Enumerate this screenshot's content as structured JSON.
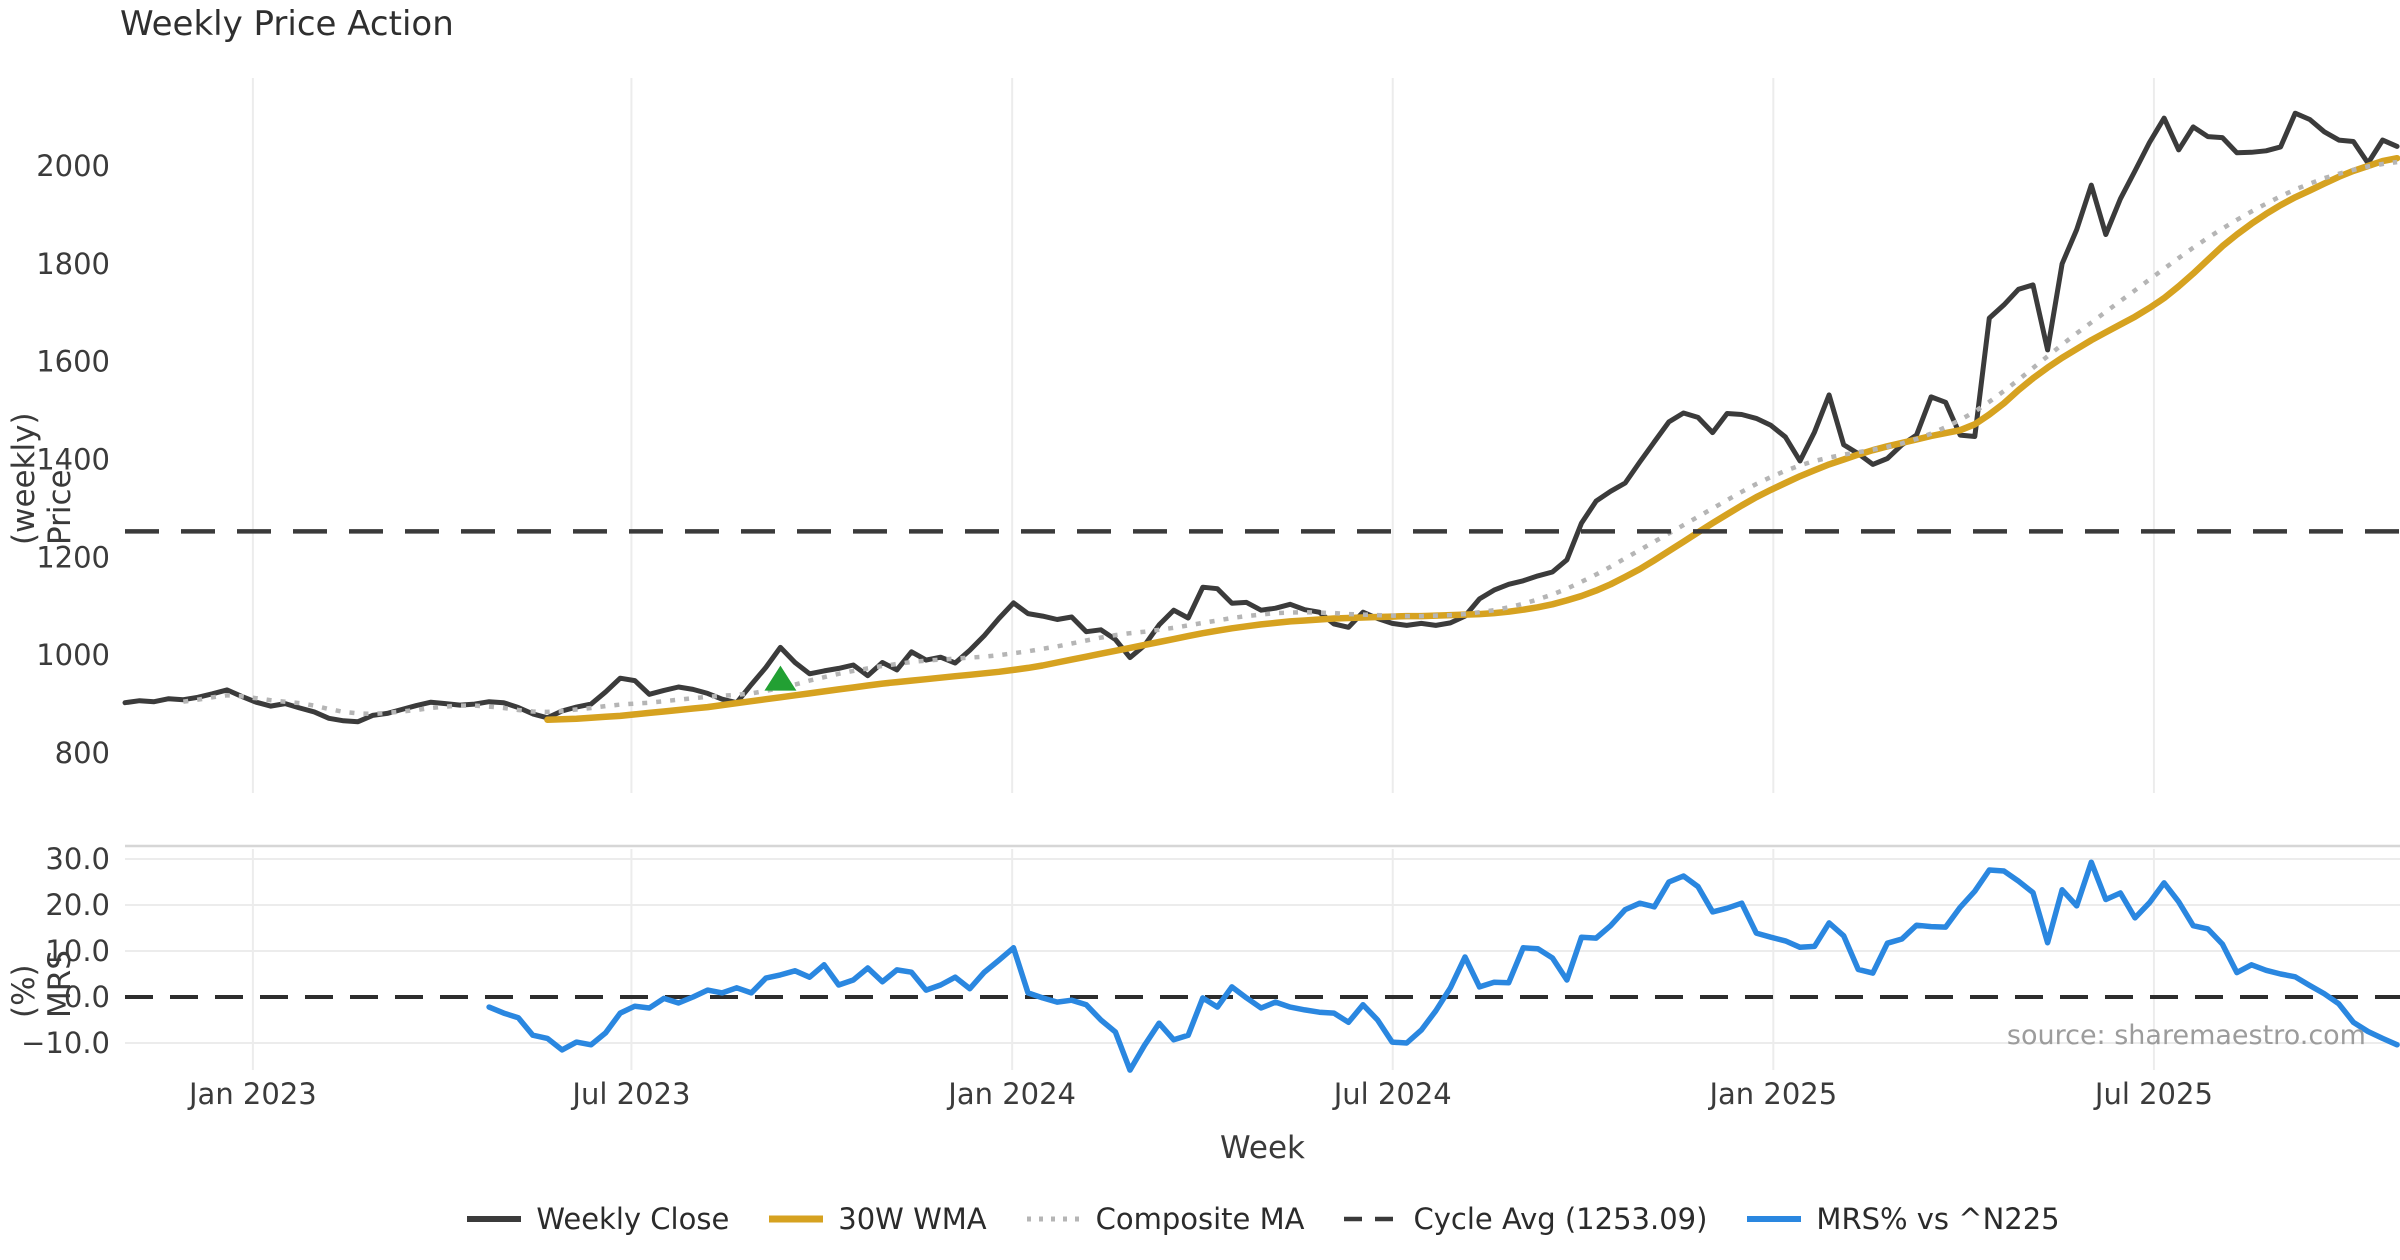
{
  "figure": {
    "title": "Weekly Price Action",
    "xlabel": "Week",
    "source_text": "source: sharemaestro.com"
  },
  "colors": {
    "background": "#ffffff",
    "grid": "#ececec",
    "panel_border": "#d6d6d6",
    "tick_text": "#3b3b3b",
    "weekly_close": "#3b3b3b",
    "wma": "#d6a220",
    "composite": "#b5b5b5",
    "cycle_avg": "#3a3a3a",
    "mrs": "#2a87e0",
    "signal_green": "#22a033"
  },
  "legend": {
    "items": [
      {
        "label": "Weekly Close",
        "color": "#3b3b3b",
        "dash": "",
        "width": 6
      },
      {
        "label": "30W WMA",
        "color": "#d6a220",
        "dash": "",
        "width": 7
      },
      {
        "label": "Composite MA",
        "color": "#b5b5b5",
        "dash": "4 8",
        "width": 5
      },
      {
        "label": "Cycle Avg (1253.09)",
        "color": "#3a3a3a",
        "dash": "18 13",
        "width": 4.5
      },
      {
        "label": "MRS% vs ^N225",
        "color": "#2a87e0",
        "dash": "",
        "width": 6
      }
    ]
  },
  "chart_data": {
    "type": "line",
    "title": "Weekly Price Action",
    "x_axis": {
      "label": "Week",
      "tick_labels": [
        "Jan 2023",
        "Jul 2023",
        "Jan 2024",
        "Jul 2024",
        "Jan 2025",
        "Jul 2025"
      ],
      "tick_weeks": [
        8.78,
        34.77,
        60.91,
        87.04,
        113.17,
        139.3
      ],
      "grid": true
    },
    "panels": [
      {
        "name": "price",
        "ylabel": "Price (weekly)",
        "ylim": [
          770,
          2180
        ],
        "yticks": [
          800,
          1000,
          1200,
          1400,
          1600,
          1800,
          2000
        ],
        "ytick_labels": [
          "800",
          "1000",
          "1200",
          "1400",
          "1600",
          "1800",
          "2000"
        ]
      },
      {
        "name": "mrs",
        "ylabel": "MRS (%)",
        "ylim": [
          -17,
          32
        ],
        "yticks": [
          30,
          20,
          10,
          0,
          -10
        ],
        "ytick_labels": [
          "30.0",
          "20.0",
          "10.0",
          "0.0",
          "−10.0"
        ]
      }
    ],
    "series": [
      {
        "name": "Weekly Close",
        "panel": "price",
        "kind": "line",
        "color": "#3b3b3b",
        "width": 5,
        "dash": "",
        "start_week": 0,
        "values": [
          903,
          907,
          905,
          911,
          909,
          914,
          921,
          929,
          916,
          904,
          896,
          901,
          892,
          884,
          871,
          866,
          864,
          877,
          881,
          889,
          897,
          904,
          901,
          898,
          900,
          905,
          903,
          893,
          880,
          872,
          886,
          894,
          900,
          925,
          953,
          948,
          920,
          928,
          935,
          930,
          922,
          910,
          903,
          940,
          975,
          1016,
          985,
          962,
          968,
          973,
          980,
          958,
          985,
          970,
          1007,
          990,
          996,
          984,
          1010,
          1040,
          1075,
          1107,
          1085,
          1080,
          1073,
          1078,
          1048,
          1052,
          1032,
          995,
          1020,
          1062,
          1092,
          1076,
          1139,
          1136,
          1106,
          1108,
          1092,
          1096,
          1104,
          1093,
          1088,
          1064,
          1057,
          1088,
          1075,
          1065,
          1061,
          1065,
          1061,
          1066,
          1080,
          1115,
          1133,
          1145,
          1152,
          1162,
          1170,
          1195,
          1270,
          1315,
          1335,
          1352,
          1395,
          1436,
          1477,
          1495,
          1486,
          1455,
          1494,
          1492,
          1484,
          1470,
          1446,
          1397,
          1456,
          1532,
          1430,
          1412,
          1390,
          1402,
          1430,
          1450,
          1528,
          1517,
          1450,
          1447,
          1689,
          1716,
          1748,
          1757,
          1624,
          1800,
          1870,
          1961,
          1860,
          1933,
          1990,
          2048,
          2098,
          2033,
          2080,
          2060,
          2058,
          2027,
          2028,
          2031,
          2039,
          2108,
          2095,
          2070,
          2053,
          2050,
          2006,
          2053,
          2040
        ]
      },
      {
        "name": "30W WMA",
        "panel": "price",
        "kind": "line",
        "color": "#d6a220",
        "width": 6.5,
        "dash": "",
        "start_week": 29,
        "values": [
          868,
          869,
          870,
          872,
          874,
          876,
          879,
          882,
          885,
          888,
          891,
          894,
          898,
          902,
          906,
          910,
          914,
          918,
          922,
          926,
          930,
          934,
          938,
          942,
          945,
          948,
          951,
          954,
          957,
          960,
          963,
          966,
          970,
          974,
          979,
          985,
          991,
          997,
          1003,
          1009,
          1015,
          1021,
          1027,
          1033,
          1039,
          1045,
          1050,
          1055,
          1059,
          1063,
          1066,
          1069,
          1071,
          1073,
          1075,
          1076,
          1077,
          1078,
          1079,
          1080,
          1080,
          1081,
          1082,
          1083,
          1084,
          1086,
          1089,
          1093,
          1098,
          1104,
          1112,
          1121,
          1132,
          1145,
          1160,
          1176,
          1194,
          1213,
          1232,
          1251,
          1270,
          1288,
          1306,
          1323,
          1338,
          1352,
          1366,
          1378,
          1390,
          1400,
          1410,
          1419,
          1427,
          1434,
          1441,
          1448,
          1454,
          1460,
          1472,
          1492,
          1515,
          1542,
          1566,
          1588,
          1608,
          1626,
          1644,
          1660,
          1676,
          1692,
          1710,
          1730,
          1754,
          1780,
          1808,
          1836,
          1860,
          1882,
          1902,
          1920,
          1936,
          1950,
          1964,
          1978,
          1990,
          2000,
          2010,
          2016
        ]
      },
      {
        "name": "Composite MA",
        "panel": "price",
        "kind": "line",
        "color": "#b5b5b5",
        "width": 4.5,
        "dash": "5 9",
        "start_week": 4,
        "values": [
          905,
          909,
          914,
          918,
          916,
          912,
          908,
          905,
          902,
          897,
          890,
          884,
          881,
          880,
          882,
          885,
          888,
          892,
          895,
          897,
          897,
          895,
          892,
          888,
          885,
          884,
          886,
          889,
          892,
          896,
          899,
          901,
          903,
          906,
          909,
          912,
          915,
          917,
          919,
          922,
          927,
          933,
          940,
          948,
          955,
          962,
          968,
          973,
          978,
          982,
          986,
          989,
          991,
          993,
          995,
          997,
          1000,
          1004,
          1008,
          1013,
          1018,
          1024,
          1030,
          1036,
          1041,
          1045,
          1048,
          1052,
          1056,
          1061,
          1066,
          1071,
          1076,
          1080,
          1083,
          1086,
          1087,
          1088,
          1087,
          1086,
          1084,
          1083,
          1082,
          1081,
          1080,
          1080,
          1081,
          1082,
          1084,
          1088,
          1092,
          1098,
          1105,
          1114,
          1124,
          1136,
          1150,
          1165,
          1181,
          1198,
          1215,
          1232,
          1249,
          1266,
          1283,
          1300,
          1317,
          1334,
          1350,
          1364,
          1377,
          1388,
          1397,
          1404,
          1410,
          1415,
          1420,
          1426,
          1433,
          1442,
          1453,
          1466,
          1481,
          1498,
          1518,
          1540,
          1563,
          1587,
          1611,
          1635,
          1658,
          1680,
          1702,
          1724,
          1746,
          1768,
          1790,
          1812,
          1833,
          1853,
          1872,
          1890,
          1907,
          1923,
          1938,
          1952,
          1964,
          1975,
          1984,
          1992,
          1999,
          2004,
          2008
        ]
      },
      {
        "name": "Cycle Avg",
        "panel": "price",
        "kind": "hline",
        "color": "#3a3a3a",
        "width": 4.5,
        "dash": "34 22",
        "value": 1253.09
      },
      {
        "name": "Zero Line",
        "panel": "mrs",
        "kind": "hline",
        "color": "#2d2d2d",
        "width": 4,
        "dash": "28 17",
        "value": 0
      },
      {
        "name": "MRS% vs ^N225",
        "panel": "mrs",
        "kind": "line",
        "color": "#2a87e0",
        "width": 5.5,
        "dash": "",
        "start_week": 25,
        "values": [
          -2.2,
          -3.5,
          -4.5,
          -8.3,
          -9.0,
          -11.5,
          -9.8,
          -10.4,
          -7.8,
          -3.5,
          -2.0,
          -2.4,
          -0.3,
          -1.3,
          0.0,
          1.5,
          0.9,
          2.0,
          0.9,
          4.1,
          4.8,
          5.7,
          4.3,
          7.0,
          2.6,
          3.7,
          6.3,
          3.3,
          5.9,
          5.4,
          1.5,
          2.6,
          4.3,
          1.8,
          5.4,
          8.0,
          10.7,
          0.9,
          -0.2,
          -1.1,
          -0.7,
          -1.7,
          -5.0,
          -7.6,
          -15.9,
          -10.5,
          -5.7,
          -9.3,
          -8.3,
          -0.2,
          -2.2,
          2.2,
          -0.2,
          -2.4,
          -1.1,
          -2.2,
          -2.8,
          -3.3,
          -3.5,
          -5.5,
          -1.7,
          -5.0,
          -9.8,
          -10.0,
          -7.2,
          -3.0,
          2.0,
          8.7,
          2.2,
          3.2,
          3.1,
          10.7,
          10.5,
          8.5,
          3.7,
          13.0,
          12.8,
          15.5,
          19.0,
          20.4,
          19.6,
          25.0,
          26.3,
          24.0,
          18.5,
          19.3,
          20.4,
          13.9,
          13.0,
          12.2,
          10.8,
          11.0,
          16.1,
          13.3,
          6.0,
          5.2,
          11.7,
          12.6,
          15.6,
          15.3,
          15.2,
          19.5,
          23.0,
          27.6,
          27.4,
          25.2,
          22.7,
          11.8,
          23.3,
          19.8,
          29.3,
          21.2,
          22.6,
          17.2,
          20.5,
          24.8,
          20.7,
          15.5,
          14.8,
          11.5,
          5.3,
          7.0,
          5.8,
          5.0,
          4.4,
          2.5,
          0.7,
          -1.5,
          -5.5,
          -7.5,
          -9.0,
          -10.4
        ]
      }
    ],
    "markers": [
      {
        "name": "buy-signal",
        "shape": "triangle-up",
        "panel": "price",
        "week": 45,
        "value": 952,
        "color": "#22a033"
      }
    ]
  }
}
